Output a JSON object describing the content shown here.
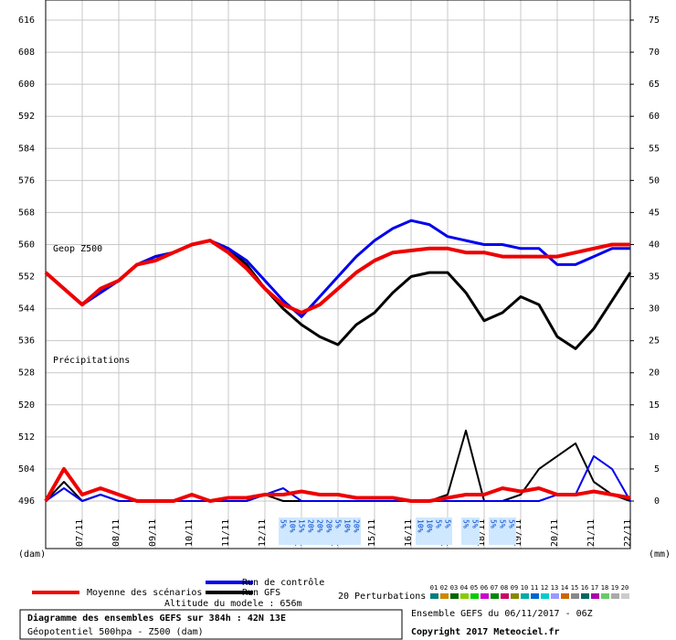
{
  "chart_data": {
    "type": "line",
    "title": "Diagramme des ensembles GEFS sur 384h : 42N 13E",
    "subtitle": "Géopotentiel 500hpa - Z500 (dam)",
    "run_label": "Ensemble GEFS du 06/11/2017 - 06Z",
    "copyright": "Copyright 2017 Meteociel.fr",
    "altitude": "Altitude du modele : 656m",
    "z500_label": "Geop Z500",
    "precip_label": "Précipitations",
    "y_unit": "(dam)",
    "y2_unit": "(mm)",
    "x": [
      0,
      12,
      24,
      36,
      48,
      60,
      72,
      84,
      96,
      108,
      120,
      132,
      144,
      156,
      168,
      180,
      192,
      204,
      216,
      228,
      240,
      252,
      264,
      276,
      288,
      300,
      312,
      324,
      336,
      348,
      360,
      372,
      384
    ],
    "xlim": [
      0,
      384
    ],
    "xticks": [
      {
        "value": 24,
        "label": "07/11"
      },
      {
        "value": 48,
        "label": "08/11"
      },
      {
        "value": 72,
        "label": "09/11"
      },
      {
        "value": 96,
        "label": "10/11"
      },
      {
        "value": 120,
        "label": "11/11"
      },
      {
        "value": 144,
        "label": "12/11"
      },
      {
        "value": 168,
        "label": "13/11"
      },
      {
        "value": 192,
        "label": "14/11"
      },
      {
        "value": 216,
        "label": "15/11"
      },
      {
        "value": 240,
        "label": "16/11"
      },
      {
        "value": 264,
        "label": "17/11"
      },
      {
        "value": 288,
        "label": "18/11"
      },
      {
        "value": 312,
        "label": "19/11"
      },
      {
        "value": 336,
        "label": "20/11"
      },
      {
        "value": 360,
        "label": "21/11"
      },
      {
        "value": 384,
        "label": "22/11"
      }
    ],
    "ylim": [
      496,
      616
    ],
    "yticks": [
      496,
      504,
      512,
      520,
      528,
      536,
      544,
      552,
      560,
      568,
      576,
      584,
      592,
      600,
      608,
      616
    ],
    "y2lim": [
      0,
      75
    ],
    "y2ticks": [
      0,
      5,
      10,
      15,
      20,
      25,
      30,
      35,
      40,
      45,
      50,
      55,
      60,
      65,
      70,
      75
    ],
    "grid": true,
    "series": [
      {
        "name": "Moyenne des scénarios",
        "color": "#ee0000",
        "width": 4,
        "values": [
          553,
          549,
          545,
          549,
          551,
          555,
          556,
          558,
          560,
          561,
          558,
          554,
          549,
          545,
          543,
          545,
          549,
          553,
          556,
          558,
          558.5,
          559,
          559,
          558,
          558,
          557,
          557,
          557,
          557,
          558,
          559,
          560,
          560
        ]
      },
      {
        "name": "Run de contrôle",
        "color": "#0000ee",
        "width": 3,
        "values": [
          553,
          549,
          545,
          548,
          551,
          555,
          557,
          558,
          560,
          561,
          559,
          556,
          551,
          546,
          542,
          547,
          552,
          557,
          561,
          564,
          566,
          565,
          562,
          561,
          560,
          560,
          559,
          559,
          555,
          555,
          557,
          559,
          559
        ]
      },
      {
        "name": "Run GFS",
        "color": "#000000",
        "width": 3,
        "values": [
          553,
          549,
          545,
          548,
          551,
          555,
          557,
          558,
          560,
          561,
          559,
          555,
          549,
          544,
          540,
          537,
          535,
          540,
          543,
          548,
          552,
          553,
          553,
          548,
          541,
          543,
          547,
          545,
          537,
          534,
          539,
          546,
          553
        ]
      },
      {
        "name": "Moyenne des scénarios",
        "color": "#ee0000",
        "width": 4,
        "axis": "y2",
        "values": [
          0,
          5,
          1,
          2,
          1,
          0,
          0,
          0,
          1,
          0,
          0.5,
          0.5,
          1,
          1,
          1.5,
          1,
          1,
          0.5,
          0.5,
          0.5,
          0,
          0,
          0.5,
          1,
          1,
          2,
          1.5,
          2,
          1,
          1,
          1.5,
          1,
          0.5
        ]
      },
      {
        "name": "Run de contrôle",
        "color": "#0000ee",
        "width": 2,
        "axis": "y2",
        "values": [
          0,
          2,
          0,
          1,
          0,
          0,
          0,
          0,
          0,
          0,
          0,
          0,
          1,
          2,
          0,
          0,
          0,
          0,
          0,
          0,
          0,
          0,
          0,
          0,
          0,
          0,
          0,
          0,
          1,
          1,
          7,
          5,
          0
        ]
      },
      {
        "name": "Run GFS",
        "color": "#000000",
        "width": 2,
        "axis": "y2",
        "values": [
          0,
          3,
          0,
          1,
          0,
          0,
          0,
          0,
          0,
          0,
          0,
          0,
          1,
          0,
          0,
          0,
          0,
          0,
          0,
          0,
          0,
          0,
          1,
          11,
          0,
          0,
          1,
          5,
          7,
          9,
          3,
          1,
          0
        ]
      }
    ],
    "perturbations": {
      "name": "20 Perturbations",
      "labels": [
        "01",
        "02",
        "03",
        "04",
        "05",
        "06",
        "07",
        "08",
        "09",
        "10",
        "11",
        "12",
        "13",
        "14",
        "15",
        "16",
        "17",
        "18",
        "19",
        "20"
      ],
      "colors": [
        "#008080",
        "#cc8800",
        "#006600",
        "#88cc00",
        "#00cc00",
        "#cc00cc",
        "#008800",
        "#cc0066",
        "#888800",
        "#00aaaa",
        "#0066cc",
        "#00cccc",
        "#9999ff",
        "#cc6600",
        "#888888",
        "#006666",
        "#aa00aa",
        "#66cc66",
        "#aaaaaa",
        "#cccccc"
      ]
    },
    "snow": {
      "x": [
        156,
        162,
        168,
        174,
        180,
        186,
        192,
        198,
        204,
        246,
        252,
        258,
        264,
        276,
        282,
        294,
        300,
        306
      ],
      "values": [
        5,
        10,
        15,
        20,
        20,
        20,
        5,
        10,
        20,
        10,
        10,
        5,
        5,
        5,
        5,
        5,
        5,
        5
      ],
      "value_labels": [
        "5%",
        "10%",
        "15%",
        "20%",
        "20%",
        "20%",
        "5%",
        "10%",
        "20%",
        "10%",
        "10%",
        "5%",
        "5%",
        "5%",
        "5%",
        "5%",
        "5%",
        "5%"
      ]
    }
  }
}
